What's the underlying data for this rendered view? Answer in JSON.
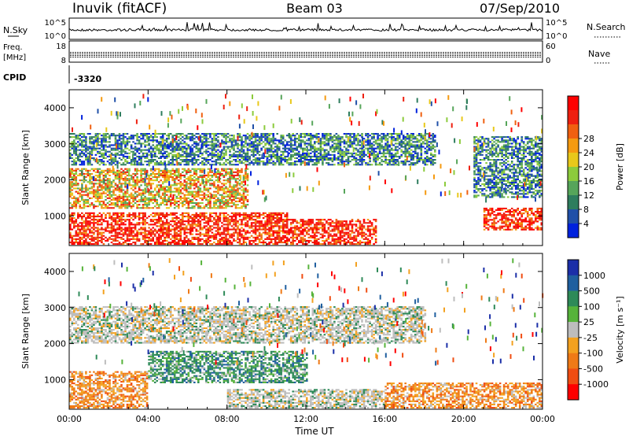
{
  "header": {
    "station": "Inuvik (fitACF)",
    "beam": "Beam 03",
    "date": "07/Sep/2010"
  },
  "top_panel": {
    "nsky_label": "N.Sky",
    "nsearch_label": "N.Search",
    "freq_label": "Freq.",
    "freq_unit": "[MHz]",
    "nave_label": "Nave",
    "cpid_label": "CPID",
    "cpid_value": "-3320",
    "noise_ticks": [
      "10^5",
      "10^0"
    ],
    "noise_ticks_right": [
      "10^5",
      "10^0"
    ],
    "freq_ticks": [
      "18",
      "8"
    ],
    "nave_ticks": [
      "60",
      "0"
    ]
  },
  "colors": {
    "power_scale": [
      "#0022dd",
      "#2050a8",
      "#2e7d5e",
      "#56a55a",
      "#8ccb3c",
      "#e8c81a",
      "#f59a10",
      "#f06010",
      "#ee2010",
      "#ff0000"
    ],
    "velocity_scale": [
      "#1b2fa8",
      "#1f5f9f",
      "#2e8a58",
      "#56b33a",
      "#bdbdbd",
      "#f3a11f",
      "#ef7a16",
      "#f04d12",
      "#ff0000"
    ]
  },
  "chart_data": [
    {
      "type": "heatmap",
      "xlabel": "Time UT",
      "ylabel": "Slant Range [km]",
      "ylim": [
        180,
        4500
      ],
      "xlim": [
        "00:00",
        "24:00"
      ],
      "x_tick_labels": [
        "00:00",
        "04:00",
        "08:00",
        "12:00",
        "16:00",
        "20:00",
        "00:00"
      ],
      "y_tick_labels": [
        "1000",
        "2000",
        "3000",
        "4000"
      ],
      "colorbar": {
        "label": "Power [dB]",
        "tick_labels": [
          "4",
          "8",
          "12",
          "16",
          "20",
          "24",
          "28"
        ]
      },
      "regions": [
        {
          "t0": 0.0,
          "t1": 11.0,
          "r0": 200,
          "r1": 1100,
          "level": "high"
        },
        {
          "t0": 11.0,
          "t1": 15.5,
          "r0": 200,
          "r1": 900,
          "level": "high"
        },
        {
          "t0": 21.0,
          "t1": 24.0,
          "r0": 600,
          "r1": 1200,
          "level": "high"
        },
        {
          "t0": 0.0,
          "t1": 9.0,
          "r0": 1200,
          "r1": 2300,
          "level": "medium"
        },
        {
          "t0": 0.0,
          "t1": 18.5,
          "r0": 2400,
          "r1": 3300,
          "level": "low"
        },
        {
          "t0": 20.5,
          "t1": 24.0,
          "r0": 1500,
          "r1": 3200,
          "level": "low"
        }
      ]
    },
    {
      "type": "heatmap",
      "xlabel": "Time UT",
      "ylabel": "Slant Range [km]",
      "ylim": [
        180,
        4500
      ],
      "xlim": [
        "00:00",
        "24:00"
      ],
      "x_tick_labels": [
        "00:00",
        "04:00",
        "08:00",
        "12:00",
        "16:00",
        "20:00",
        "00:00"
      ],
      "y_tick_labels": [
        "1000",
        "2000",
        "3000",
        "4000"
      ],
      "colorbar": {
        "label": "Velocity [m s⁻¹]",
        "tick_labels": [
          "1000",
          "500",
          "100",
          "25",
          "-25",
          "-100",
          "-500",
          "-1000"
        ]
      },
      "regions": [
        {
          "t0": 0.0,
          "t1": 4.0,
          "r0": 200,
          "r1": 1200,
          "level": "negative"
        },
        {
          "t0": 4.0,
          "t1": 12.0,
          "r0": 900,
          "r1": 1800,
          "level": "positive"
        },
        {
          "t0": 8.0,
          "t1": 16.0,
          "r0": 200,
          "r1": 700,
          "level": "zero"
        },
        {
          "t0": 16.0,
          "t1": 24.0,
          "r0": 200,
          "r1": 900,
          "level": "negative"
        },
        {
          "t0": 0.0,
          "t1": 18.0,
          "r0": 2000,
          "r1": 3000,
          "level": "zero"
        }
      ]
    }
  ]
}
